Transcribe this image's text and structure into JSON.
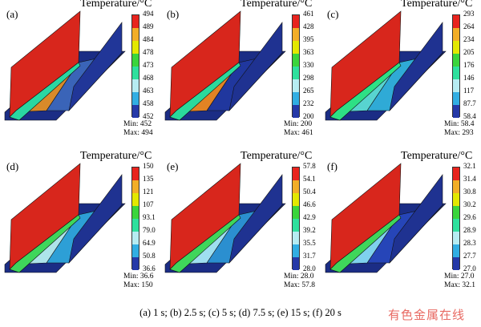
{
  "colorbar_title": "Temperature/°C",
  "colors": [
    "#e8241e",
    "#f2ae27",
    "#e3e800",
    "#3ad53c",
    "#2ee09d",
    "#b6ecf2",
    "#31aee3",
    "#2539a8"
  ],
  "panels": [
    {
      "label": "(a)",
      "ticks": [
        "494",
        "489",
        "484",
        "478",
        "473",
        "468",
        "463",
        "458",
        "452"
      ],
      "min": "Min: 452",
      "max": "Max: 494",
      "left_wall": "#d8261c",
      "left_base": "#d88a2a",
      "right_base": "#3a64b8",
      "right_wall": "#213698",
      "tip": "#2ad7a2"
    },
    {
      "label": "(b)",
      "ticks": [
        "461",
        "428",
        "395",
        "363",
        "330",
        "298",
        "265",
        "232",
        "200"
      ],
      "min": "Min: 200",
      "max": "Max: 461",
      "left_wall": "#d8261c",
      "left_base": "#e28324",
      "right_base": "#20379e",
      "right_wall": "#1f3291",
      "tip": "#2bd99c"
    },
    {
      "label": "(c)",
      "ticks": [
        "293",
        "264",
        "234",
        "205",
        "176",
        "146",
        "117",
        "87.7",
        "58.4"
      ],
      "min": "Min: 58.4",
      "max": "Max: 293",
      "left_wall": "#d8261c",
      "left_base": "#58d4d0",
      "right_base": "#2faad6",
      "right_wall": "#1f3291",
      "tip": "#2ee085"
    },
    {
      "label": "(d)",
      "ticks": [
        "150",
        "135",
        "121",
        "107",
        "93.1",
        "79.0",
        "64.9",
        "50.8",
        "36.6"
      ],
      "min": "Min: 36.6",
      "max": "Max: 150",
      "left_wall": "#d8261c",
      "left_base": "#aee4ea",
      "right_base": "#2d9fd6",
      "right_wall": "#1f3291",
      "tip": "#3fd65b"
    },
    {
      "label": "(e)",
      "ticks": [
        "57.8",
        "54.1",
        "50.4",
        "46.6",
        "42.9",
        "39.2",
        "35.5",
        "31.7",
        "28.0"
      ],
      "min": "Min: 28.0",
      "max": "Max: 57.8",
      "left_wall": "#d8261c",
      "left_base": "#9fdff0",
      "right_base": "#2b8fd0",
      "right_wall": "#1f3291",
      "tip": "#3fd65b"
    },
    {
      "label": "(f)",
      "ticks": [
        "32.1",
        "31.4",
        "30.8",
        "30.2",
        "29.6",
        "28.9",
        "28.3",
        "27.7",
        "27.0"
      ],
      "min": "Min: 27.0",
      "max": "Max: 32.1",
      "left_wall": "#d8261c",
      "left_base": "#7fd1ee",
      "right_base": "#2645b8",
      "right_wall": "#1f3291",
      "tip": "#3fd65b"
    }
  ],
  "caption": "(a) 1 s; (b) 2.5 s;  (c) 5 s; (d) 7.5 s; (e) 15 s; (f) 20 s",
  "watermark": "有色金属在线"
}
